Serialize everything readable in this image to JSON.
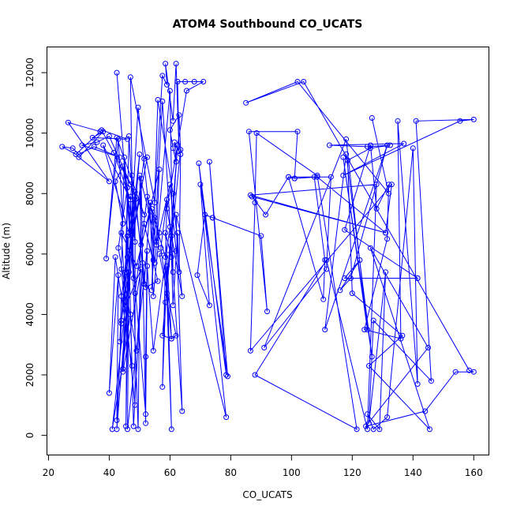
{
  "chart_data": {
    "type": "line",
    "title": "ATOM4 Southbound CO_UCATS",
    "xlabel": "CO_UCATS",
    "ylabel": "Altitude (m)",
    "xlim": [
      19.5,
      165
    ],
    "ylim": [
      -650,
      12850
    ],
    "xticks": [
      20,
      40,
      60,
      80,
      100,
      120,
      140,
      160
    ],
    "yticks": [
      0,
      2000,
      4000,
      6000,
      8000,
      10000,
      12000
    ],
    "grid": false,
    "line_color": "#0000ff",
    "marker": "open-circle",
    "series": [
      {
        "points": [
          [
            42.5,
            12000
          ],
          [
            48,
            5200
          ],
          [
            47,
            11850
          ],
          [
            55,
            7700
          ],
          [
            57.5,
            11900
          ],
          [
            59,
            11600
          ],
          [
            58.5,
            12300
          ],
          [
            61,
            10400
          ],
          [
            62,
            12300
          ],
          [
            63,
            9400
          ],
          [
            62.5,
            11700
          ],
          [
            65,
            11700
          ],
          [
            68,
            11700
          ],
          [
            71,
            11700
          ],
          [
            65.5,
            11400
          ],
          [
            59,
            7500
          ],
          [
            64,
            4600
          ],
          [
            61,
            8000
          ],
          [
            56,
            11100
          ],
          [
            54,
            4800
          ],
          [
            57.5,
            11050
          ],
          [
            61,
            5400
          ],
          [
            60,
            11400
          ],
          [
            55,
            5700
          ],
          [
            49.5,
            10850
          ],
          [
            44.5,
            2200
          ],
          [
            50,
            9300
          ],
          [
            44,
            3800
          ],
          [
            51.5,
            9150
          ],
          [
            52.5,
            9200
          ],
          [
            45.5,
            5400
          ],
          [
            46.5,
            9900
          ],
          [
            48.5,
            6400
          ],
          [
            44.5,
            8900
          ],
          [
            42,
            8400
          ],
          [
            44.5,
            7000
          ],
          [
            43,
            9800
          ],
          [
            39,
            5850
          ],
          [
            42.5,
            9850
          ],
          [
            51.5,
            7300
          ],
          [
            40,
            9900
          ],
          [
            36,
            9700
          ],
          [
            31,
            9600
          ],
          [
            43.5,
            9200
          ],
          [
            35,
            9550
          ],
          [
            30,
            9300
          ],
          [
            28,
            9500
          ],
          [
            24.5,
            9550
          ],
          [
            29,
            9300
          ],
          [
            37,
            10050
          ],
          [
            26.5,
            10350
          ],
          [
            40,
            8400
          ],
          [
            30,
            9200
          ],
          [
            38,
            10050
          ],
          [
            34.5,
            9850
          ],
          [
            46,
            9800
          ],
          [
            37.5,
            10100
          ],
          [
            47,
            8300
          ],
          [
            41.5,
            9350
          ],
          [
            47,
            7800
          ],
          [
            38,
            9600
          ],
          [
            46.5,
            6700
          ],
          [
            48.5,
            8050
          ],
          [
            51.5,
            5000
          ],
          [
            53.5,
            7700
          ],
          [
            55.5,
            6300
          ],
          [
            60,
            8300
          ],
          [
            62,
            6100
          ],
          [
            56.5,
            6000
          ],
          [
            62,
            3300
          ],
          [
            60.5,
            3200
          ],
          [
            58.5,
            6700
          ],
          [
            60.5,
            5900
          ],
          [
            61,
            4300
          ],
          [
            62.5,
            6700
          ],
          [
            63,
            5400
          ],
          [
            63.5,
            9300
          ],
          [
            61.5,
            9700
          ],
          [
            62,
            9050
          ],
          [
            61,
            9500
          ],
          [
            60,
            10100
          ],
          [
            63,
            10600
          ],
          [
            63.5,
            9450
          ],
          [
            58.5,
            4400
          ],
          [
            62.5,
            9600
          ],
          [
            60.5,
            6600
          ],
          [
            57.5,
            3300
          ],
          [
            60.5,
            3200
          ],
          [
            59,
            4700
          ],
          [
            57,
            6200
          ],
          [
            59,
            7800
          ],
          [
            57.5,
            1600
          ],
          [
            59,
            5600
          ],
          [
            60.5,
            200
          ],
          [
            58.5,
            5900
          ],
          [
            52.5,
            7900
          ],
          [
            48.5,
            4700
          ],
          [
            47,
            7900
          ],
          [
            49.5,
            200
          ],
          [
            50.5,
            8500
          ],
          [
            52,
            400
          ],
          [
            52,
            2600
          ],
          [
            52.5,
            6100
          ],
          [
            46,
            200
          ],
          [
            46.5,
            5400
          ],
          [
            41,
            200
          ],
          [
            47,
            4000
          ],
          [
            48,
            300
          ],
          [
            51,
            5700
          ],
          [
            49,
            2800
          ],
          [
            43,
            6200
          ],
          [
            46,
            8200
          ],
          [
            44.5,
            2100
          ],
          [
            50.5,
            5500
          ],
          [
            45.5,
            4300
          ],
          [
            44,
            6700
          ],
          [
            49,
            5600
          ],
          [
            56.5,
            8800
          ],
          [
            55.5,
            6400
          ],
          [
            50,
            8600
          ],
          [
            50.5,
            6300
          ],
          [
            53.5,
            7400
          ],
          [
            54.5,
            4600
          ],
          [
            56.5,
            6700
          ],
          [
            55,
            7200
          ],
          [
            54,
            7500
          ],
          [
            54.5,
            5800
          ],
          [
            51.5,
            7000
          ],
          [
            56,
            5100
          ],
          [
            52,
            4900
          ],
          [
            47.5,
            8600
          ],
          [
            46,
            5900
          ],
          [
            44,
            4600
          ],
          [
            43.5,
            3100
          ],
          [
            46,
            6600
          ],
          [
            45.5,
            300
          ],
          [
            46.5,
            6000
          ],
          [
            47.5,
            2300
          ],
          [
            42,
            5900
          ],
          [
            40,
            1400
          ],
          [
            43,
            5300
          ],
          [
            42.5,
            500
          ],
          [
            44,
            3700
          ],
          [
            42.5,
            200
          ],
          [
            48.5,
            7800
          ],
          [
            48.5,
            1000
          ],
          [
            44,
            5500
          ],
          [
            45,
            9200
          ],
          [
            52,
            700
          ],
          [
            52.5,
            5600
          ],
          [
            54.5,
            2800
          ],
          [
            60,
            6900
          ],
          [
            64,
            800
          ],
          [
            62,
            7300
          ],
          [
            78.5,
            600
          ],
          [
            69.5,
            9000
          ],
          [
            78.5,
            2000
          ],
          [
            73,
            9050
          ],
          [
            79,
            1950
          ],
          [
            70,
            8300
          ],
          [
            73,
            4300
          ],
          [
            69,
            5300
          ],
          [
            71.5,
            7300
          ],
          [
            74,
            7200
          ],
          [
            74,
            7200
          ],
          [
            90,
            6600
          ],
          [
            92,
            4100
          ],
          [
            86,
            10050
          ],
          [
            102,
            10050
          ],
          [
            101,
            8500
          ],
          [
            107.5,
            8550
          ],
          [
            111,
            5800
          ],
          [
            110.5,
            4500
          ],
          [
            99,
            8550
          ],
          [
            91.5,
            7300
          ],
          [
            87,
            7900
          ],
          [
            131,
            6700
          ],
          [
            133,
            8300
          ],
          [
            86.5,
            2800
          ],
          [
            88,
            7700
          ],
          [
            88.5,
            10000
          ],
          [
            108.5,
            8600
          ],
          [
            121.5,
            200
          ],
          [
            88,
            2000
          ],
          [
            111.5,
            5800
          ],
          [
            125,
            200
          ],
          [
            128,
            8300
          ],
          [
            86.5,
            7950
          ],
          [
            131,
            6700
          ],
          [
            108.5,
            8550
          ],
          [
            101,
            8500
          ],
          [
            99,
            8550
          ],
          [
            113,
            8550
          ],
          [
            111.5,
            5500
          ],
          [
            91,
            2900
          ],
          [
            118,
            9800
          ],
          [
            125,
            3500
          ],
          [
            117,
            9200
          ],
          [
            126.5,
            2600
          ],
          [
            118,
            9300
          ],
          [
            111,
            3500
          ],
          [
            131.5,
            9600
          ],
          [
            119.5,
            5200
          ],
          [
            116,
            4800
          ],
          [
            122.5,
            5800
          ],
          [
            117.5,
            5200
          ],
          [
            141.5,
            5200
          ],
          [
            141.5,
            5200
          ],
          [
            117.5,
            6800
          ],
          [
            126,
            9600
          ],
          [
            128,
            7500
          ],
          [
            132,
            8300
          ],
          [
            131.5,
            6500
          ],
          [
            124,
            3500
          ],
          [
            136,
            3200
          ],
          [
            135,
            10400
          ],
          [
            141.5,
            1700
          ],
          [
            140,
            9500
          ],
          [
            131.5,
            600
          ],
          [
            127,
            200
          ],
          [
            125,
            700
          ],
          [
            129,
            200
          ],
          [
            131,
            5400
          ],
          [
            125.5,
            400
          ],
          [
            127,
            3800
          ],
          [
            146,
            1800
          ],
          [
            141,
            10400
          ],
          [
            160,
            10450
          ],
          [
            155.5,
            10400
          ],
          [
            117,
            8600
          ],
          [
            137,
            9650
          ],
          [
            112.5,
            9600
          ],
          [
            125,
            9550
          ],
          [
            132.5,
            9600
          ],
          [
            126,
            9500
          ],
          [
            118.5,
            9100
          ],
          [
            120,
            4700
          ],
          [
            136.5,
            3300
          ],
          [
            125.5,
            2300
          ],
          [
            145.5,
            200
          ],
          [
            126,
            6200
          ],
          [
            145,
            2900
          ],
          [
            124.5,
            300
          ],
          [
            144,
            800
          ],
          [
            154,
            2100
          ],
          [
            160,
            2100
          ],
          [
            158.5,
            2150
          ],
          [
            104,
            11700
          ],
          [
            85,
            11000
          ],
          [
            102,
            11700
          ],
          [
            132,
            8000
          ],
          [
            126.5,
            10500
          ]
        ]
      }
    ]
  }
}
